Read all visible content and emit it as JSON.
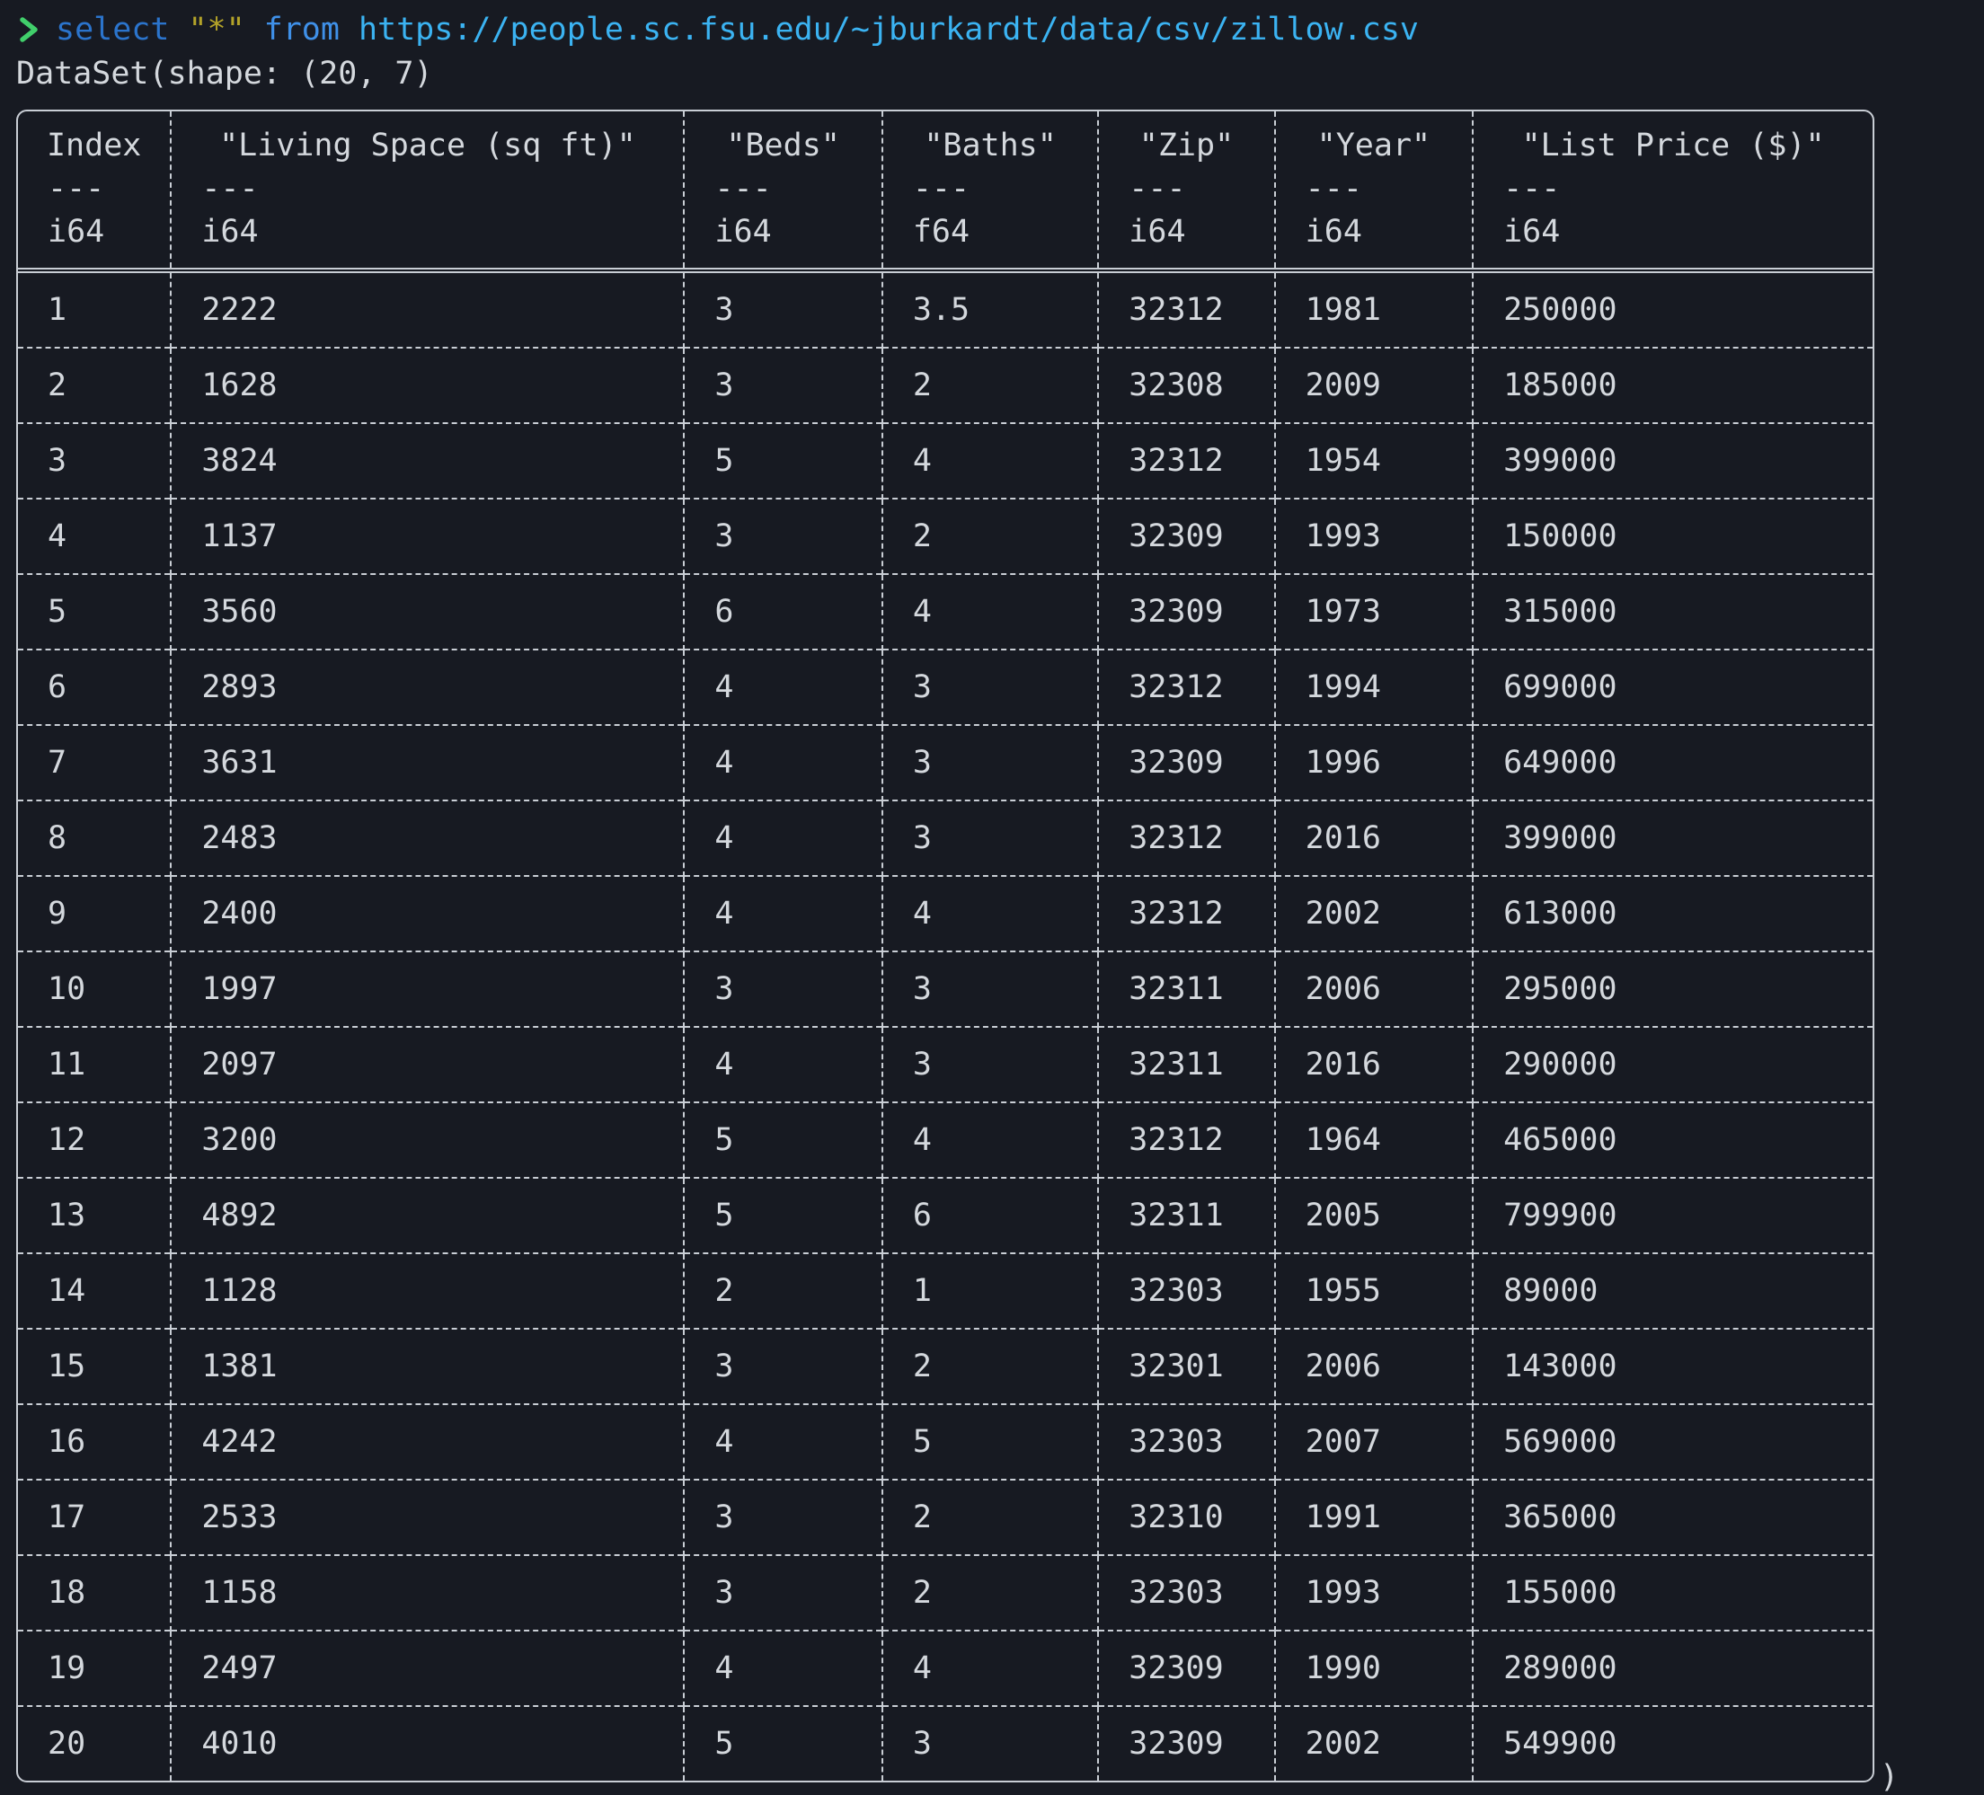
{
  "terminal": {
    "prompt_symbol": "❯",
    "command": {
      "select_keyword": "select",
      "star_argument": "\"*\"",
      "from_keyword": "from",
      "url": "https://people.sc.fsu.edu/~jburkardt/data/csv/zillow.csv"
    },
    "output_line": "DataSet(shape: (20, 7)",
    "closing_paren": ")"
  },
  "colors": {
    "background": "#171a22",
    "prompt_green": "#41cf6b",
    "select_blue": "#2b74cc",
    "star_yellow": "#b3a329",
    "from_blue": "#3f90e8",
    "url_blue": "#3bb3f2",
    "text": "#d4d8dd",
    "table_border": "#c9ced5"
  },
  "table": {
    "columns": [
      {
        "name": "Index",
        "separator": "---",
        "dtype": "i64"
      },
      {
        "name": "\"Living Space (sq ft)\"",
        "separator": "---",
        "dtype": "i64"
      },
      {
        "name": "\"Beds\"",
        "separator": "---",
        "dtype": "i64"
      },
      {
        "name": "\"Baths\"",
        "separator": "---",
        "dtype": "f64"
      },
      {
        "name": "\"Zip\"",
        "separator": "---",
        "dtype": "i64"
      },
      {
        "name": "\"Year\"",
        "separator": "---",
        "dtype": "i64"
      },
      {
        "name": "\"List Price ($)\"",
        "separator": "---",
        "dtype": "i64"
      }
    ],
    "rows": [
      [
        "1",
        "2222",
        "3",
        "3.5",
        "32312",
        "1981",
        "250000"
      ],
      [
        "2",
        "1628",
        "3",
        "2",
        "32308",
        "2009",
        "185000"
      ],
      [
        "3",
        "3824",
        "5",
        "4",
        "32312",
        "1954",
        "399000"
      ],
      [
        "4",
        "1137",
        "3",
        "2",
        "32309",
        "1993",
        "150000"
      ],
      [
        "5",
        "3560",
        "6",
        "4",
        "32309",
        "1973",
        "315000"
      ],
      [
        "6",
        "2893",
        "4",
        "3",
        "32312",
        "1994",
        "699000"
      ],
      [
        "7",
        "3631",
        "4",
        "3",
        "32309",
        "1996",
        "649000"
      ],
      [
        "8",
        "2483",
        "4",
        "3",
        "32312",
        "2016",
        "399000"
      ],
      [
        "9",
        "2400",
        "4",
        "4",
        "32312",
        "2002",
        "613000"
      ],
      [
        "10",
        "1997",
        "3",
        "3",
        "32311",
        "2006",
        "295000"
      ],
      [
        "11",
        "2097",
        "4",
        "3",
        "32311",
        "2016",
        "290000"
      ],
      [
        "12",
        "3200",
        "5",
        "4",
        "32312",
        "1964",
        "465000"
      ],
      [
        "13",
        "4892",
        "5",
        "6",
        "32311",
        "2005",
        "799900"
      ],
      [
        "14",
        "1128",
        "2",
        "1",
        "32303",
        "1955",
        "89000"
      ],
      [
        "15",
        "1381",
        "3",
        "2",
        "32301",
        "2006",
        "143000"
      ],
      [
        "16",
        "4242",
        "4",
        "5",
        "32303",
        "2007",
        "569000"
      ],
      [
        "17",
        "2533",
        "3",
        "2",
        "32310",
        "1991",
        "365000"
      ],
      [
        "18",
        "1158",
        "3",
        "2",
        "32303",
        "1993",
        "155000"
      ],
      [
        "19",
        "2497",
        "4",
        "4",
        "32309",
        "1990",
        "289000"
      ],
      [
        "20",
        "4010",
        "5",
        "3",
        "32309",
        "2002",
        "549900"
      ]
    ]
  }
}
